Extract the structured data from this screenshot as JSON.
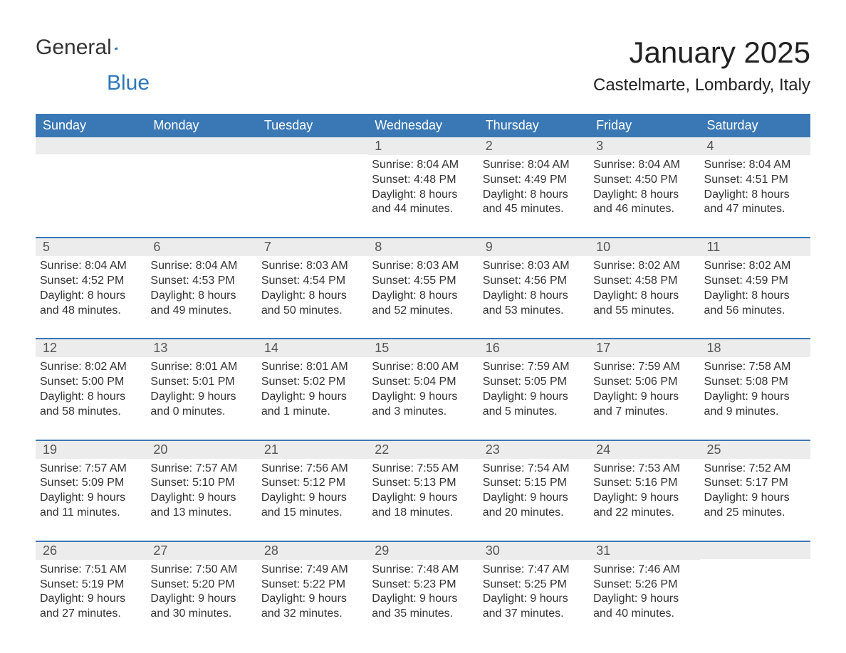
{
  "logo": {
    "part1": "General",
    "part2": "Blue"
  },
  "title": "January 2025",
  "location": "Castelmarte, Lombardy, Italy",
  "colors": {
    "header_bg": "#3a78b5",
    "header_text": "#ffffff",
    "daynum_bg": "#ececec",
    "row_border": "#3a78b5",
    "logo_blue": "#2f77b8"
  },
  "day_headers": [
    "Sunday",
    "Monday",
    "Tuesday",
    "Wednesday",
    "Thursday",
    "Friday",
    "Saturday"
  ],
  "weeks": [
    [
      {
        "num": "",
        "sunrise": "",
        "sunset": "",
        "daylight1": "",
        "daylight2": ""
      },
      {
        "num": "",
        "sunrise": "",
        "sunset": "",
        "daylight1": "",
        "daylight2": ""
      },
      {
        "num": "",
        "sunrise": "",
        "sunset": "",
        "daylight1": "",
        "daylight2": ""
      },
      {
        "num": "1",
        "sunrise": "Sunrise: 8:04 AM",
        "sunset": "Sunset: 4:48 PM",
        "daylight1": "Daylight: 8 hours",
        "daylight2": "and 44 minutes."
      },
      {
        "num": "2",
        "sunrise": "Sunrise: 8:04 AM",
        "sunset": "Sunset: 4:49 PM",
        "daylight1": "Daylight: 8 hours",
        "daylight2": "and 45 minutes."
      },
      {
        "num": "3",
        "sunrise": "Sunrise: 8:04 AM",
        "sunset": "Sunset: 4:50 PM",
        "daylight1": "Daylight: 8 hours",
        "daylight2": "and 46 minutes."
      },
      {
        "num": "4",
        "sunrise": "Sunrise: 8:04 AM",
        "sunset": "Sunset: 4:51 PM",
        "daylight1": "Daylight: 8 hours",
        "daylight2": "and 47 minutes."
      }
    ],
    [
      {
        "num": "5",
        "sunrise": "Sunrise: 8:04 AM",
        "sunset": "Sunset: 4:52 PM",
        "daylight1": "Daylight: 8 hours",
        "daylight2": "and 48 minutes."
      },
      {
        "num": "6",
        "sunrise": "Sunrise: 8:04 AM",
        "sunset": "Sunset: 4:53 PM",
        "daylight1": "Daylight: 8 hours",
        "daylight2": "and 49 minutes."
      },
      {
        "num": "7",
        "sunrise": "Sunrise: 8:03 AM",
        "sunset": "Sunset: 4:54 PM",
        "daylight1": "Daylight: 8 hours",
        "daylight2": "and 50 minutes."
      },
      {
        "num": "8",
        "sunrise": "Sunrise: 8:03 AM",
        "sunset": "Sunset: 4:55 PM",
        "daylight1": "Daylight: 8 hours",
        "daylight2": "and 52 minutes."
      },
      {
        "num": "9",
        "sunrise": "Sunrise: 8:03 AM",
        "sunset": "Sunset: 4:56 PM",
        "daylight1": "Daylight: 8 hours",
        "daylight2": "and 53 minutes."
      },
      {
        "num": "10",
        "sunrise": "Sunrise: 8:02 AM",
        "sunset": "Sunset: 4:58 PM",
        "daylight1": "Daylight: 8 hours",
        "daylight2": "and 55 minutes."
      },
      {
        "num": "11",
        "sunrise": "Sunrise: 8:02 AM",
        "sunset": "Sunset: 4:59 PM",
        "daylight1": "Daylight: 8 hours",
        "daylight2": "and 56 minutes."
      }
    ],
    [
      {
        "num": "12",
        "sunrise": "Sunrise: 8:02 AM",
        "sunset": "Sunset: 5:00 PM",
        "daylight1": "Daylight: 8 hours",
        "daylight2": "and 58 minutes."
      },
      {
        "num": "13",
        "sunrise": "Sunrise: 8:01 AM",
        "sunset": "Sunset: 5:01 PM",
        "daylight1": "Daylight: 9 hours",
        "daylight2": "and 0 minutes."
      },
      {
        "num": "14",
        "sunrise": "Sunrise: 8:01 AM",
        "sunset": "Sunset: 5:02 PM",
        "daylight1": "Daylight: 9 hours",
        "daylight2": "and 1 minute."
      },
      {
        "num": "15",
        "sunrise": "Sunrise: 8:00 AM",
        "sunset": "Sunset: 5:04 PM",
        "daylight1": "Daylight: 9 hours",
        "daylight2": "and 3 minutes."
      },
      {
        "num": "16",
        "sunrise": "Sunrise: 7:59 AM",
        "sunset": "Sunset: 5:05 PM",
        "daylight1": "Daylight: 9 hours",
        "daylight2": "and 5 minutes."
      },
      {
        "num": "17",
        "sunrise": "Sunrise: 7:59 AM",
        "sunset": "Sunset: 5:06 PM",
        "daylight1": "Daylight: 9 hours",
        "daylight2": "and 7 minutes."
      },
      {
        "num": "18",
        "sunrise": "Sunrise: 7:58 AM",
        "sunset": "Sunset: 5:08 PM",
        "daylight1": "Daylight: 9 hours",
        "daylight2": "and 9 minutes."
      }
    ],
    [
      {
        "num": "19",
        "sunrise": "Sunrise: 7:57 AM",
        "sunset": "Sunset: 5:09 PM",
        "daylight1": "Daylight: 9 hours",
        "daylight2": "and 11 minutes."
      },
      {
        "num": "20",
        "sunrise": "Sunrise: 7:57 AM",
        "sunset": "Sunset: 5:10 PM",
        "daylight1": "Daylight: 9 hours",
        "daylight2": "and 13 minutes."
      },
      {
        "num": "21",
        "sunrise": "Sunrise: 7:56 AM",
        "sunset": "Sunset: 5:12 PM",
        "daylight1": "Daylight: 9 hours",
        "daylight2": "and 15 minutes."
      },
      {
        "num": "22",
        "sunrise": "Sunrise: 7:55 AM",
        "sunset": "Sunset: 5:13 PM",
        "daylight1": "Daylight: 9 hours",
        "daylight2": "and 18 minutes."
      },
      {
        "num": "23",
        "sunrise": "Sunrise: 7:54 AM",
        "sunset": "Sunset: 5:15 PM",
        "daylight1": "Daylight: 9 hours",
        "daylight2": "and 20 minutes."
      },
      {
        "num": "24",
        "sunrise": "Sunrise: 7:53 AM",
        "sunset": "Sunset: 5:16 PM",
        "daylight1": "Daylight: 9 hours",
        "daylight2": "and 22 minutes."
      },
      {
        "num": "25",
        "sunrise": "Sunrise: 7:52 AM",
        "sunset": "Sunset: 5:17 PM",
        "daylight1": "Daylight: 9 hours",
        "daylight2": "and 25 minutes."
      }
    ],
    [
      {
        "num": "26",
        "sunrise": "Sunrise: 7:51 AM",
        "sunset": "Sunset: 5:19 PM",
        "daylight1": "Daylight: 9 hours",
        "daylight2": "and 27 minutes."
      },
      {
        "num": "27",
        "sunrise": "Sunrise: 7:50 AM",
        "sunset": "Sunset: 5:20 PM",
        "daylight1": "Daylight: 9 hours",
        "daylight2": "and 30 minutes."
      },
      {
        "num": "28",
        "sunrise": "Sunrise: 7:49 AM",
        "sunset": "Sunset: 5:22 PM",
        "daylight1": "Daylight: 9 hours",
        "daylight2": "and 32 minutes."
      },
      {
        "num": "29",
        "sunrise": "Sunrise: 7:48 AM",
        "sunset": "Sunset: 5:23 PM",
        "daylight1": "Daylight: 9 hours",
        "daylight2": "and 35 minutes."
      },
      {
        "num": "30",
        "sunrise": "Sunrise: 7:47 AM",
        "sunset": "Sunset: 5:25 PM",
        "daylight1": "Daylight: 9 hours",
        "daylight2": "and 37 minutes."
      },
      {
        "num": "31",
        "sunrise": "Sunrise: 7:46 AM",
        "sunset": "Sunset: 5:26 PM",
        "daylight1": "Daylight: 9 hours",
        "daylight2": "and 40 minutes."
      },
      {
        "num": "",
        "sunrise": "",
        "sunset": "",
        "daylight1": "",
        "daylight2": ""
      }
    ]
  ]
}
